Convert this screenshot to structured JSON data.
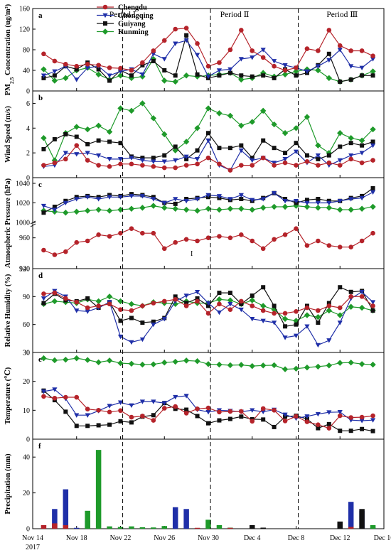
{
  "colors": {
    "Chengdu": "#b5232a",
    "Chongqing": "#1f2fa8",
    "Guiyang": "#111111",
    "Kunming": "#1e9a2a"
  },
  "legend": [
    "Chengdu",
    "Chongqing",
    "Guiyang",
    "Kunming"
  ],
  "periods": [
    {
      "label": "Period Ⅰ",
      "x": 8.2
    },
    {
      "label": "Period Ⅱ",
      "x": 18.4
    },
    {
      "label": "Period Ⅲ",
      "x": 28.2
    }
  ],
  "xaxis": {
    "ticks": [
      {
        "v": 0,
        "l": "Nov 14"
      },
      {
        "v": 4,
        "l": "Nov 18"
      },
      {
        "v": 8,
        "l": "Nov 22"
      },
      {
        "v": 12,
        "l": "Nov 26"
      },
      {
        "v": 16,
        "l": "Nov 30"
      },
      {
        "v": 20,
        "l": "Dec 4"
      },
      {
        "v": 24,
        "l": "Dec 8"
      },
      {
        "v": 28,
        "l": "Dec 12"
      },
      {
        "v": 32,
        "l": "Dec 16"
      }
    ],
    "year": "2017",
    "xlim": [
      0,
      32
    ]
  },
  "dashed_x": [
    8.2,
    16.2,
    24.2
  ],
  "stray_mark": "I",
  "chart_data": [
    {
      "type": "line",
      "letter": "a",
      "ylabel": "PM2.5 Concentration (ug/m³)",
      "ylim": [
        0,
        160
      ],
      "yticks": [
        0,
        40,
        80,
        120,
        160
      ],
      "x": [
        1,
        2,
        3,
        4,
        5,
        6,
        7,
        8,
        9,
        10,
        11,
        12,
        13,
        14,
        15,
        16,
        17,
        18,
        19,
        20,
        21,
        22,
        23,
        24,
        25,
        26,
        27,
        28,
        29,
        30,
        31
      ],
      "series": [
        {
          "name": "Chengdu",
          "values": [
            72,
            58,
            52,
            48,
            52,
            50,
            45,
            44,
            40,
            55,
            78,
            98,
            120,
            122,
            92,
            48,
            55,
            80,
            118,
            78,
            65,
            48,
            40,
            45,
            82,
            78,
            118,
            88,
            78,
            78,
            68
          ]
        },
        {
          "name": "Chongqing",
          "values": [
            30,
            38,
            48,
            22,
            45,
            48,
            30,
            38,
            42,
            32,
            72,
            62,
            92,
            98,
            70,
            28,
            40,
            42,
            62,
            65,
            80,
            58,
            50,
            45,
            38,
            48,
            60,
            80,
            48,
            45,
            62
          ]
        },
        {
          "name": "Guiyang",
          "values": [
            25,
            30,
            48,
            42,
            55,
            42,
            20,
            40,
            30,
            50,
            58,
            40,
            30,
            108,
            32,
            25,
            30,
            35,
            30,
            28,
            30,
            25,
            42,
            30,
            35,
            50,
            72,
            18,
            22,
            30,
            30
          ]
        },
        {
          "name": "Kunming",
          "values": [
            42,
            20,
            25,
            40,
            45,
            32,
            22,
            30,
            25,
            28,
            62,
            20,
            18,
            30,
            28,
            30,
            32,
            35,
            22,
            25,
            35,
            28,
            32,
            38,
            42,
            40,
            25,
            18,
            22,
            30,
            38
          ]
        }
      ]
    },
    {
      "type": "line",
      "letter": "b",
      "ylabel": "Wind  Speed (m/s)",
      "ylim": [
        0,
        7
      ],
      "yticks": [
        0,
        2,
        4,
        6
      ],
      "x": [
        1,
        2,
        3,
        4,
        5,
        6,
        7,
        8,
        9,
        10,
        11,
        12,
        13,
        14,
        15,
        16,
        17,
        18,
        19,
        20,
        21,
        22,
        23,
        24,
        25,
        26,
        27,
        28,
        29,
        30,
        31
      ],
      "series": [
        {
          "name": "Chengdu",
          "values": [
            1.0,
            1.2,
            1.5,
            2.6,
            1.4,
            1.0,
            0.9,
            1.1,
            1.1,
            1.0,
            0.9,
            0.8,
            0.8,
            1.0,
            1.1,
            1.6,
            1.1,
            0.6,
            1.0,
            1.0,
            1.6,
            1.0,
            1.2,
            1.0,
            1.3,
            1.0,
            1.2,
            1.0,
            1.5,
            1.2,
            1.4
          ]
        },
        {
          "name": "Chongqing",
          "values": [
            0.9,
            1.0,
            2.0,
            1.9,
            2.0,
            1.8,
            1.5,
            1.5,
            1.6,
            1.4,
            1.3,
            1.3,
            1.4,
            1.7,
            1.5,
            3.0,
            1.0,
            0.6,
            2.2,
            1.4,
            1.6,
            1.2,
            1.5,
            2.1,
            1.2,
            1.8,
            1.0,
            1.4,
            1.8,
            2.0,
            2.6
          ]
        },
        {
          "name": "Guiyang",
          "values": [
            2.3,
            3.1,
            3.5,
            3.3,
            2.7,
            3.0,
            2.9,
            2.8,
            1.7,
            1.6,
            1.6,
            1.8,
            2.5,
            1.5,
            2.2,
            3.6,
            2.4,
            2.4,
            2.6,
            1.6,
            3.0,
            2.4,
            2.0,
            2.8,
            1.8,
            1.5,
            1.8,
            2.5,
            2.8,
            2.6,
            2.9
          ]
        },
        {
          "name": "Kunming",
          "values": [
            3.2,
            1.4,
            3.6,
            4.1,
            3.9,
            4.2,
            3.7,
            5.6,
            5.4,
            6.0,
            4.8,
            3.5,
            2.2,
            2.9,
            4.0,
            5.6,
            5.2,
            5.0,
            4.2,
            4.5,
            5.4,
            4.3,
            3.6,
            4.0,
            4.9,
            2.6,
            2.0,
            3.6,
            3.2,
            3.0,
            3.9
          ]
        }
      ]
    },
    {
      "type": "line",
      "letter": "c",
      "ylabel": "Atmospheric Pressure (hPa)",
      "broken_axis": true,
      "ylim": [
        940,
        1040
      ],
      "yticks": [
        940,
        960,
        1000,
        1020,
        1040
      ],
      "x": [
        1,
        2,
        3,
        4,
        5,
        6,
        7,
        8,
        9,
        10,
        11,
        12,
        13,
        14,
        15,
        16,
        17,
        18,
        19,
        20,
        21,
        22,
        23,
        24,
        25,
        26,
        27,
        28,
        29,
        30,
        31
      ],
      "series": [
        {
          "name": "Chengdu",
          "values": [
            952,
            949,
            951,
            957,
            958,
            962,
            961,
            963,
            966,
            963,
            963,
            953,
            957,
            959,
            958,
            960,
            961,
            960,
            962,
            958,
            953,
            959,
            962,
            966,
            955,
            958,
            955,
            954,
            954,
            958,
            963
          ]
        },
        {
          "name": "Chongqing",
          "values": [
            1017,
            1013,
            1020,
            1024,
            1026,
            1024,
            1026,
            1026,
            1027,
            1027,
            1024,
            1020,
            1024,
            1022,
            1024,
            1028,
            1027,
            1024,
            1028,
            1023,
            1024,
            1030,
            1022,
            1022,
            1020,
            1020,
            1020,
            1022,
            1024,
            1025,
            1031
          ]
        },
        {
          "name": "Guiyang",
          "values": [
            1010,
            1016,
            1022,
            1026,
            1027,
            1026,
            1028,
            1027,
            1029,
            1028,
            1026,
            1020,
            1019,
            1024,
            1025,
            1026,
            1025,
            1023,
            1024,
            1022,
            1025,
            1030,
            1024,
            1020,
            1023,
            1024,
            1022,
            1022,
            1025,
            1027,
            1035
          ]
        },
        {
          "name": "Kunming",
          "values": [
            1012,
            1011,
            1010,
            1011,
            1012,
            1013,
            1012,
            1013,
            1014,
            1015,
            1017,
            1015,
            1014,
            1013,
            1012,
            1014,
            1013,
            1014,
            1014,
            1013,
            1015,
            1016,
            1016,
            1017,
            1016,
            1015,
            1015,
            1013,
            1013,
            1014,
            1016
          ]
        }
      ]
    },
    {
      "type": "line",
      "letter": "d",
      "ylabel": "Relative Humidity (%)",
      "ylim": [
        30,
        120
      ],
      "yticks": [
        30,
        60,
        90,
        120
      ],
      "x": [
        1,
        2,
        3,
        4,
        5,
        6,
        7,
        8,
        9,
        10,
        11,
        12,
        13,
        14,
        15,
        16,
        17,
        18,
        19,
        20,
        21,
        22,
        23,
        24,
        25,
        26,
        27,
        28,
        29,
        30,
        31
      ],
      "series": [
        {
          "name": "Chengdu",
          "values": [
            93,
            94,
            88,
            84,
            78,
            80,
            82,
            76,
            75,
            80,
            83,
            85,
            87,
            80,
            85,
            72,
            82,
            76,
            85,
            80,
            75,
            72,
            72,
            74,
            78,
            75,
            80,
            78,
            90,
            90,
            80
          ]
        },
        {
          "name": "Chongqing",
          "values": [
            88,
            96,
            90,
            75,
            74,
            78,
            84,
            47,
            41,
            44,
            60,
            66,
            85,
            91,
            95,
            83,
            73,
            82,
            76,
            66,
            64,
            62,
            46,
            48,
            58,
            38,
            43,
            62,
            88,
            95,
            84
          ]
        },
        {
          "name": "Guiyang",
          "values": [
            83,
            93,
            86,
            85,
            88,
            78,
            84,
            64,
            67,
            62,
            63,
            67,
            90,
            83,
            88,
            80,
            94,
            94,
            82,
            91,
            100,
            80,
            58,
            60,
            80,
            62,
            83,
            100,
            95,
            96,
            75
          ]
        },
        {
          "name": "Kunming",
          "values": [
            82,
            85,
            84,
            83,
            87,
            85,
            90,
            85,
            82,
            80,
            84,
            83,
            82,
            85,
            83,
            83,
            87,
            86,
            82,
            86,
            80,
            76,
            66,
            64,
            70,
            68,
            75,
            70,
            79,
            78,
            75
          ]
        }
      ]
    },
    {
      "type": "line",
      "letter": "e",
      "ylabel": "Temperature (℃)",
      "ylim": [
        0,
        30
      ],
      "yticks": [
        0,
        10,
        20,
        30
      ],
      "x": [
        1,
        2,
        3,
        4,
        5,
        6,
        7,
        8,
        9,
        10,
        11,
        12,
        13,
        14,
        15,
        16,
        17,
        18,
        19,
        20,
        21,
        22,
        23,
        24,
        25,
        26,
        27,
        28,
        29,
        30,
        31
      ],
      "series": [
        {
          "name": "Chengdu",
          "values": [
            14.8,
            14.2,
            14.5,
            14.5,
            10.4,
            10.0,
            9.4,
            9.9,
            7.6,
            8.0,
            6.5,
            10.7,
            11.3,
            9.0,
            10.5,
            10.8,
            9.4,
            9.6,
            9.6,
            6.2,
            10.6,
            10.0,
            6.3,
            7.9,
            6.0,
            5.0,
            3.8,
            8.1,
            7.5,
            7.6,
            8.1
          ]
        },
        {
          "name": "Chongqing",
          "values": [
            16.5,
            17.2,
            14.0,
            8.3,
            8.3,
            9.8,
            11.5,
            12.7,
            11.7,
            13.0,
            13.0,
            12.5,
            14.6,
            15.0,
            10.2,
            9.4,
            10.0,
            9.8,
            9.5,
            10.0,
            9.5,
            10.2,
            8.5,
            7.2,
            7.9,
            8.7,
            9.3,
            9.4,
            6.6,
            6.4,
            6.6
          ]
        },
        {
          "name": "Guiyang",
          "values": [
            16.8,
            13.5,
            9.5,
            4.6,
            4.6,
            4.8,
            5.0,
            6.2,
            5.8,
            7.8,
            8.3,
            12.5,
            10.5,
            10.2,
            8.0,
            5.5,
            6.5,
            7.0,
            7.8,
            6.9,
            6.8,
            4.2,
            7.8,
            8.1,
            7.0,
            3.8,
            5.2,
            2.9,
            2.9,
            3.5,
            2.8
          ]
        },
        {
          "name": "Kunming",
          "values": [
            28.0,
            27.3,
            27.5,
            28.0,
            27.4,
            26.6,
            27.2,
            26.3,
            26.1,
            25.8,
            25.9,
            26.5,
            26.8,
            27.2,
            27.0,
            26.0,
            25.8,
            25.6,
            25.7,
            25.3,
            25.5,
            25.6,
            24.2,
            24.4,
            24.8,
            25.1,
            25.5,
            26.4,
            26.5,
            26.0,
            25.8
          ]
        }
      ]
    },
    {
      "type": "bar",
      "letter": "f",
      "ylabel": "Precipitation (mm)",
      "ylim": [
        0,
        50
      ],
      "yticks": [
        0,
        20,
        40
      ],
      "series": [
        {
          "name": "Chongqing",
          "points": [
            [
              2,
              11
            ],
            [
              3,
              22
            ],
            [
              4,
              0.5
            ],
            [
              5,
              4.5
            ],
            [
              9,
              0.3
            ],
            [
              13,
              12
            ],
            [
              14,
              11
            ],
            [
              29,
              15
            ],
            [
              30,
              10
            ],
            [
              31,
              1
            ]
          ]
        },
        {
          "name": "Kunming",
          "points": [
            [
              5,
              10
            ],
            [
              6,
              44
            ],
            [
              7,
              1.3
            ],
            [
              8,
              1
            ],
            [
              9,
              1.3
            ],
            [
              10,
              0.8
            ],
            [
              11,
              0.7
            ],
            [
              12,
              1.5
            ],
            [
              16,
              5
            ],
            [
              17,
              2
            ],
            [
              18,
              0.6
            ],
            [
              29,
              1
            ],
            [
              31,
              2
            ]
          ]
        },
        {
          "name": "Chengdu",
          "points": [
            [
              1,
              2
            ],
            [
              2,
              3
            ],
            [
              3,
              2
            ],
            [
              15,
              0.5
            ],
            [
              18,
              0.5
            ],
            [
              29,
              1
            ]
          ]
        },
        {
          "name": "Guiyang",
          "points": [
            [
              20,
              2
            ],
            [
              21,
              0.6
            ],
            [
              28,
              4
            ],
            [
              30,
              11
            ]
          ]
        }
      ]
    }
  ]
}
